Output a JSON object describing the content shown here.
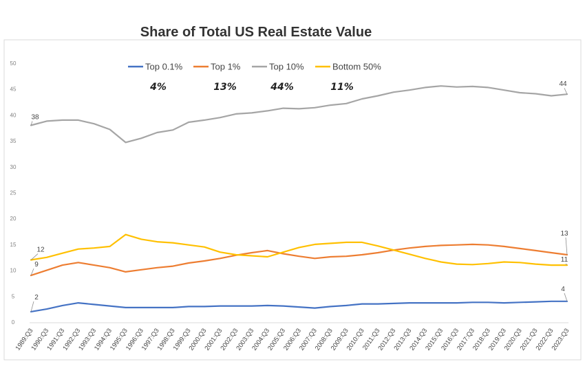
{
  "chart_data": {
    "type": "line",
    "title": "Share of Total US Real Estate Value",
    "xlabel": "",
    "ylabel": "",
    "ylim": [
      0,
      50
    ],
    "yticks": [
      "0",
      "5",
      "10",
      "15",
      "20",
      "25",
      "30",
      "35",
      "40",
      "45",
      "50"
    ],
    "grid": false,
    "legend_position": "top",
    "categories": [
      "1989:Q3",
      "1990:Q3",
      "1991:Q3",
      "1992:Q3",
      "1993:Q3",
      "1994:Q3",
      "1995:Q3",
      "1996:Q3",
      "1997:Q3",
      "1998:Q3",
      "1999:Q3",
      "2000:Q3",
      "2001:Q3",
      "2002:Q3",
      "2003:Q3",
      "2004:Q3",
      "2005:Q3",
      "2006:Q3",
      "2007:Q3",
      "2008:Q3",
      "2009:Q3",
      "2010:Q3",
      "2011:Q3",
      "2012:Q3",
      "2013:Q3",
      "2014:Q3",
      "2015:Q3",
      "2016:Q3",
      "2017:Q3",
      "2018:Q3",
      "2019:Q3",
      "2020:Q3",
      "2021:Q3",
      "2022:Q3",
      "2023:Q3"
    ],
    "series": [
      {
        "name": "Top 0.1%",
        "color": "#4472C4",
        "annotation": "4%",
        "values": [
          2,
          2.5,
          3.2,
          3.7,
          3.4,
          3.1,
          2.8,
          2.8,
          2.8,
          2.8,
          3.0,
          3.0,
          3.1,
          3.1,
          3.1,
          3.2,
          3.1,
          2.9,
          2.7,
          3.0,
          3.2,
          3.5,
          3.5,
          3.6,
          3.7,
          3.7,
          3.7,
          3.7,
          3.8,
          3.8,
          3.7,
          3.8,
          3.9,
          4.0,
          4
        ]
      },
      {
        "name": "Top 1%",
        "color": "#ED7D31",
        "annotation": "13%",
        "values": [
          9,
          10,
          11,
          11.5,
          11,
          10.5,
          9.7,
          10.1,
          10.5,
          10.8,
          11.4,
          11.8,
          12.3,
          12.9,
          13.4,
          13.8,
          13.2,
          12.7,
          12.3,
          12.6,
          12.7,
          13.0,
          13.4,
          13.9,
          14.3,
          14.6,
          14.8,
          14.9,
          15.0,
          14.9,
          14.6,
          14.2,
          13.8,
          13.4,
          13
        ]
      },
      {
        "name": "Top 10%",
        "color": "#A5A5A5",
        "annotation": "44%",
        "values": [
          38,
          38.8,
          39,
          39,
          38.3,
          37.2,
          34.7,
          35.5,
          36.6,
          37.1,
          38.6,
          39.0,
          39.5,
          40.2,
          40.4,
          40.8,
          41.3,
          41.2,
          41.4,
          41.9,
          42.2,
          43.1,
          43.7,
          44.4,
          44.8,
          45.3,
          45.6,
          45.4,
          45.5,
          45.3,
          44.8,
          44.3,
          44.1,
          43.7,
          44
        ]
      },
      {
        "name": "Bottom 50%",
        "color": "#FFC000",
        "annotation": "11%",
        "values": [
          12,
          12.5,
          13.3,
          14.1,
          14.3,
          14.6,
          16.9,
          16.0,
          15.5,
          15.3,
          14.9,
          14.5,
          13.5,
          13.0,
          12.8,
          12.6,
          13.5,
          14.4,
          15.0,
          15.2,
          15.4,
          15.4,
          14.7,
          13.9,
          13.1,
          12.3,
          11.6,
          11.2,
          11.1,
          11.3,
          11.6,
          11.5,
          11.2,
          11.0,
          11
        ]
      }
    ],
    "data_labels": [
      {
        "series": "Top 10%",
        "point": "first",
        "text": "38"
      },
      {
        "series": "Top 10%",
        "point": "last",
        "text": "44"
      },
      {
        "series": "Bottom 50%",
        "point": "first",
        "text": "12"
      },
      {
        "series": "Bottom 50%",
        "point": "last",
        "text": "11"
      },
      {
        "series": "Top 1%",
        "point": "first",
        "text": "9"
      },
      {
        "series": "Top 1%",
        "point": "last",
        "text": "13"
      },
      {
        "series": "Top 0.1%",
        "point": "first",
        "text": "2"
      },
      {
        "series": "Top 0.1%",
        "point": "last",
        "text": "4"
      }
    ]
  }
}
